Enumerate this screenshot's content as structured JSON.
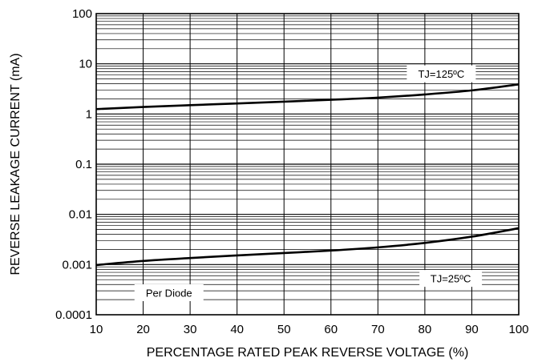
{
  "chart_data": {
    "type": "line",
    "title": "",
    "xlabel": "PERCENTAGE RATED PEAK REVERSE VOLTAGE (%)",
    "ylabel": "REVERSE LEAKAGE CURRENT (mA)",
    "xlim": [
      10,
      100
    ],
    "ylim": [
      0.0001,
      100
    ],
    "yscale": "log",
    "grid": true,
    "x_ticks": [
      "10",
      "20",
      "30",
      "40",
      "50",
      "60",
      "70",
      "80",
      "90",
      "100"
    ],
    "y_ticks": [
      "0.0001",
      "0.001",
      "0.01",
      "0.1",
      "1",
      "10",
      "100"
    ],
    "series": [
      {
        "name": "TJ=125ºC",
        "x": [
          10,
          20,
          30,
          40,
          50,
          60,
          70,
          80,
          90,
          100
        ],
        "y": [
          1.25,
          1.38,
          1.5,
          1.62,
          1.76,
          1.92,
          2.12,
          2.45,
          2.95,
          3.9
        ],
        "color": "#000000"
      },
      {
        "name": "TJ=25ºC",
        "x": [
          10,
          20,
          30,
          40,
          50,
          60,
          70,
          80,
          90,
          100
        ],
        "y": [
          0.00098,
          0.00118,
          0.00135,
          0.00152,
          0.0017,
          0.0019,
          0.0022,
          0.0027,
          0.0036,
          0.0053
        ],
        "color": "#000000"
      }
    ],
    "annotations": [
      "TJ=125ºC",
      "TJ=25ºC",
      "Per Diode"
    ]
  }
}
